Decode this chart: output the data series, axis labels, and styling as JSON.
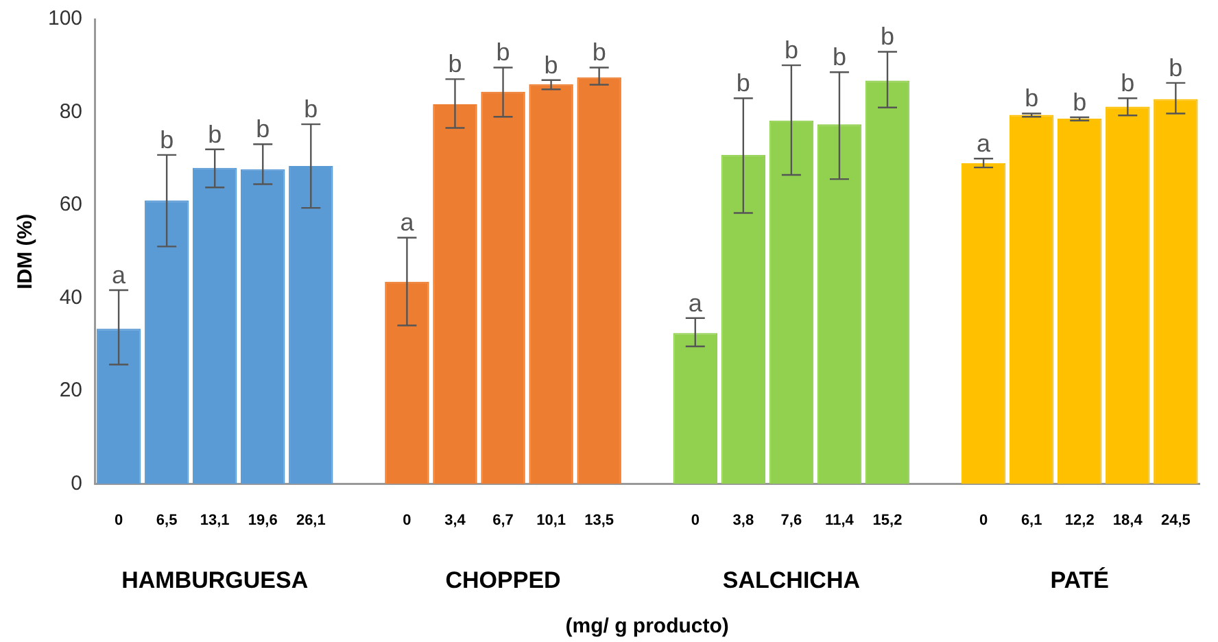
{
  "chart_data": {
    "type": "bar",
    "ylabel": "IDM (%)",
    "xlabel": "(mg/ g producto)",
    "categories": [
      "0",
      "6,5",
      "13,1",
      "19,6",
      "26,1",
      null,
      "0",
      "3,4",
      "6,7",
      "10,1",
      "13,5",
      null,
      "0",
      "3,8",
      "7,6",
      "11,4",
      "15,2",
      null,
      "0",
      "6,1",
      "12,2",
      "18,4",
      "24,5"
    ],
    "values": [
      33.4,
      61.0,
      68.0,
      67.7,
      68.4,
      null,
      43.5,
      81.7,
      84.4,
      86.0,
      87.5,
      null,
      32.5,
      70.8,
      78.2,
      77.4,
      86.8,
      null,
      69.0,
      79.4,
      78.6,
      81.2,
      82.8
    ],
    "errors": [
      [
        25.7,
        41.7
      ],
      [
        51.1,
        70.8
      ],
      [
        63.8,
        72.0
      ],
      [
        64.5,
        73.1
      ],
      [
        59.4,
        77.4
      ],
      null,
      [
        34.1,
        53.0
      ],
      [
        76.6,
        87.1
      ],
      [
        79.0,
        89.6
      ],
      [
        84.9,
        86.9
      ],
      [
        85.9,
        89.6
      ],
      null,
      [
        29.6,
        35.7
      ],
      [
        58.3,
        83.0
      ],
      [
        66.5,
        90.1
      ],
      [
        65.6,
        88.6
      ],
      [
        81.0,
        93.0
      ],
      null,
      [
        68.1,
        70.0
      ],
      [
        79.0,
        79.7
      ],
      [
        78.2,
        78.9
      ],
      [
        79.3,
        83.0
      ],
      [
        79.7,
        86.3
      ]
    ],
    "value_labels": [
      "a",
      "b",
      "b",
      "b",
      "b",
      null,
      "a",
      "b",
      "b",
      "b",
      "b",
      null,
      "a",
      "b",
      "b",
      "b",
      "b",
      null,
      "a",
      "b",
      "b",
      "b",
      "b"
    ],
    "colors": [
      "#5b9bd5",
      "#5b9bd5",
      "#5b9bd5",
      "#5b9bd5",
      "#5b9bd5",
      "#ffffff",
      "#ed7d31",
      "#ed7d31",
      "#ed7d31",
      "#ed7d31",
      "#ed7d31",
      "#ffffff",
      "#92d050",
      "#92d050",
      "#92d050",
      "#92d050",
      "#92d050",
      "#ffffff",
      "#ffc000",
      "#ffc000",
      "#ffc000",
      "#ffc000",
      "#ffc000"
    ],
    "ylim": [
      0,
      100
    ],
    "yticks": [
      0,
      20,
      40,
      60,
      80,
      100
    ],
    "grid": false,
    "legend": false,
    "annotations": [
      "HAMBURGUESA",
      "CHOPPED",
      "SALCHICHA",
      "PATÉ"
    ]
  }
}
